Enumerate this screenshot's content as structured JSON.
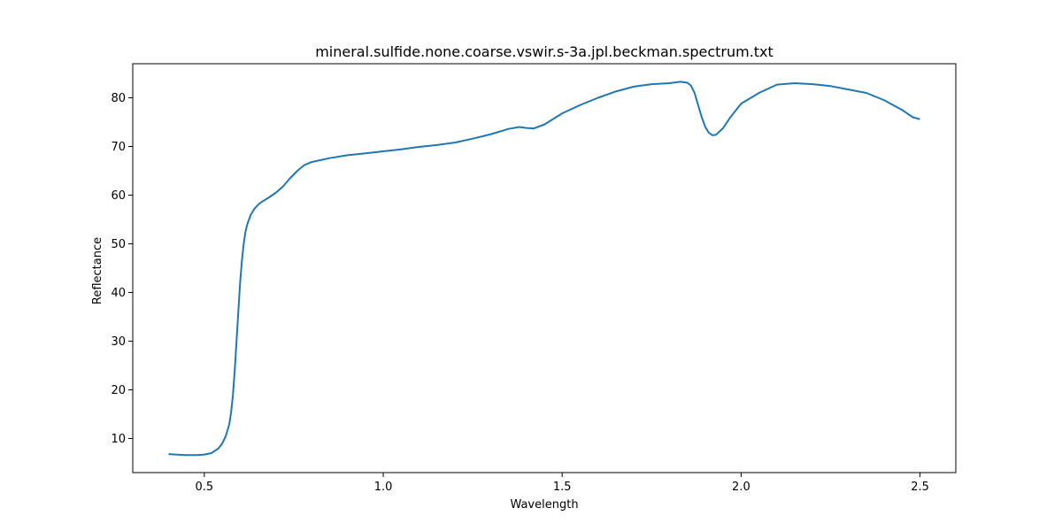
{
  "chart_data": {
    "type": "line",
    "title": "mineral.sulfide.none.coarse.vswir.s-3a.jpl.beckman.spectrum.txt",
    "xlabel": "Wavelength",
    "ylabel": "Reflectance",
    "xlim": [
      0.3,
      2.6
    ],
    "ylim": [
      3,
      87
    ],
    "x_ticks": [
      0.5,
      1.0,
      1.5,
      2.0,
      2.5
    ],
    "x_tick_labels": [
      "0.5",
      "1.0",
      "1.5",
      "2.0",
      "2.5"
    ],
    "y_ticks": [
      10,
      20,
      30,
      40,
      50,
      60,
      70,
      80
    ],
    "y_tick_labels": [
      "10",
      "20",
      "30",
      "40",
      "50",
      "60",
      "70",
      "80"
    ],
    "grid": false,
    "legend": "none",
    "series": [
      {
        "color": "#1f77b4",
        "x": [
          0.4,
          0.42,
          0.45,
          0.48,
          0.5,
          0.52,
          0.54,
          0.55,
          0.56,
          0.57,
          0.575,
          0.58,
          0.585,
          0.59,
          0.595,
          0.6,
          0.605,
          0.61,
          0.615,
          0.62,
          0.63,
          0.64,
          0.65,
          0.66,
          0.68,
          0.7,
          0.72,
          0.74,
          0.76,
          0.78,
          0.8,
          0.85,
          0.9,
          0.95,
          1.0,
          1.05,
          1.1,
          1.15,
          1.2,
          1.25,
          1.3,
          1.35,
          1.38,
          1.4,
          1.42,
          1.45,
          1.5,
          1.55,
          1.6,
          1.65,
          1.7,
          1.75,
          1.8,
          1.83,
          1.85,
          1.86,
          1.87,
          1.88,
          1.89,
          1.9,
          1.91,
          1.92,
          1.93,
          1.95,
          1.97,
          2.0,
          2.05,
          2.1,
          2.15,
          2.2,
          2.25,
          2.3,
          2.35,
          2.4,
          2.45,
          2.48,
          2.5
        ],
        "y": [
          6.8,
          6.7,
          6.6,
          6.6,
          6.7,
          7.0,
          8.0,
          9.0,
          10.5,
          13.0,
          15.5,
          19.0,
          24.0,
          30.0,
          36.0,
          42.0,
          46.5,
          50.0,
          52.5,
          54.0,
          56.0,
          57.2,
          58.0,
          58.6,
          59.5,
          60.5,
          61.8,
          63.5,
          65.0,
          66.2,
          66.8,
          67.6,
          68.2,
          68.6,
          69.0,
          69.4,
          69.9,
          70.3,
          70.8,
          71.6,
          72.5,
          73.6,
          74.0,
          73.8,
          73.7,
          74.5,
          76.8,
          78.5,
          80.0,
          81.3,
          82.3,
          82.8,
          83.0,
          83.3,
          83.1,
          82.5,
          81.0,
          78.5,
          76.0,
          74.0,
          72.8,
          72.3,
          72.4,
          73.8,
          76.0,
          78.8,
          81.0,
          82.7,
          83.0,
          82.8,
          82.4,
          81.7,
          81.0,
          79.5,
          77.5,
          76.0,
          75.6
        ]
      }
    ]
  }
}
